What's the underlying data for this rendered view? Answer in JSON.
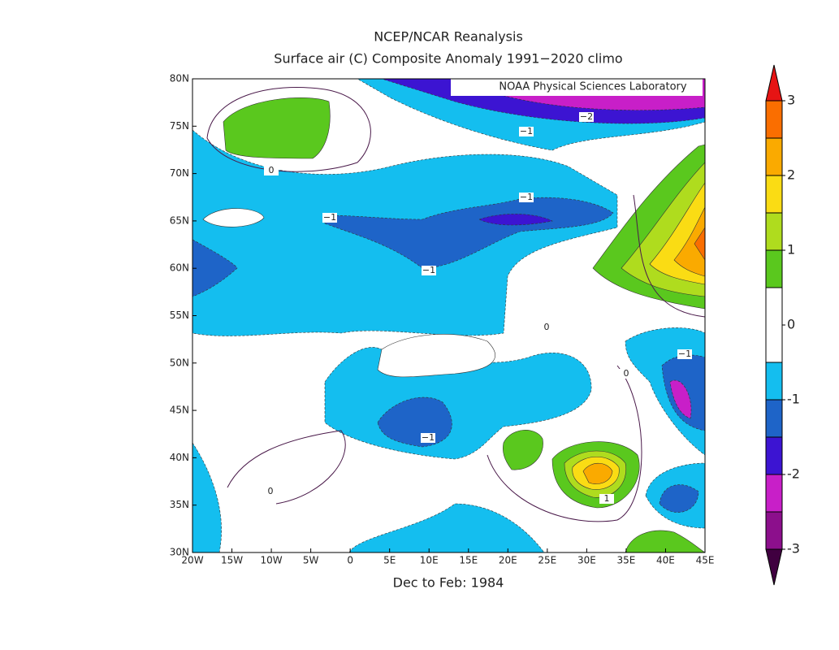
{
  "title": "NCEP/NCAR Reanalysis",
  "subtitle": "Surface air (C) Composite Anomaly 1991−2020 climo",
  "credit": "NOAA Physical Sciences Laboratory",
  "footer": "Dec to Feb: 1984",
  "map": {
    "xlim": [
      -20,
      45
    ],
    "ylim": [
      30,
      80
    ],
    "xticks": [
      {
        "value": -20,
        "label": "20W"
      },
      {
        "value": -15,
        "label": "15W"
      },
      {
        "value": -10,
        "label": "10W"
      },
      {
        "value": -5,
        "label": "5W"
      },
      0,
      {
        "value": 5,
        "label": "5E"
      },
      {
        "value": 10,
        "label": "10E"
      },
      {
        "value": 15,
        "label": "15E"
      },
      {
        "value": 20,
        "label": "20E"
      },
      {
        "value": 25,
        "label": "25E"
      },
      {
        "value": 30,
        "label": "30E"
      },
      {
        "value": 35,
        "label": "35E"
      },
      {
        "value": 40,
        "label": "40E"
      },
      {
        "value": 45,
        "label": "45E"
      }
    ],
    "yticks": [
      {
        "value": 30,
        "label": "30N"
      },
      {
        "value": 35,
        "label": "35N"
      },
      {
        "value": 40,
        "label": "40N"
      },
      {
        "value": 45,
        "label": "45N"
      },
      {
        "value": 50,
        "label": "50N"
      },
      {
        "value": 55,
        "label": "55N"
      },
      {
        "value": 60,
        "label": "60N"
      },
      {
        "value": 65,
        "label": "65N"
      },
      {
        "value": 70,
        "label": "70N"
      },
      {
        "value": 75,
        "label": "75N"
      },
      {
        "value": 80,
        "label": "80N"
      }
    ],
    "contour_labels": [
      "−1",
      "−2",
      "0",
      "−1",
      "−1",
      "−1",
      "0",
      "−1",
      "0",
      "−1",
      "0",
      "1"
    ]
  },
  "colorbar": {
    "levels": [
      -3,
      -2.5,
      -2,
      -1.5,
      -1,
      -0.5,
      0.5,
      1,
      1.5,
      2,
      2.5,
      3
    ],
    "colors": [
      "#400040",
      "#8c0f8c",
      "#c81fc8",
      "#3c14d2",
      "#1e64c8",
      "#14beef",
      "#ffffff",
      "#5ac81e",
      "#afdc1e",
      "#fadc14",
      "#faaa00",
      "#fa6e00",
      "#e61414"
    ],
    "ticks": [
      -3,
      -2,
      -1,
      0,
      1,
      2,
      3
    ]
  }
}
